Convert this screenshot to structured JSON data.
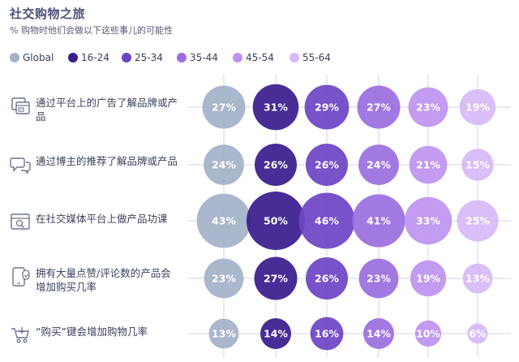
{
  "title": "社交购物之旅",
  "subtitle": "% 购物时他们会做以下这些事儿的可能性",
  "chart_data": {
    "type": "bubble-matrix",
    "title": "社交购物之旅",
    "subtitle": "% 购物时他们会做以下这些事儿的可能性",
    "legend_position": "top-left",
    "series": [
      {
        "name": "Global",
        "color": "#a4b1c9",
        "values": [
          27,
          24,
          43,
          23,
          13
        ]
      },
      {
        "name": "16-24",
        "color": "#3a1d8e",
        "values": [
          31,
          26,
          50,
          27,
          14
        ]
      },
      {
        "name": "25-34",
        "color": "#6d45c4",
        "values": [
          29,
          26,
          46,
          26,
          16
        ]
      },
      {
        "name": "35-44",
        "color": "#9b6fdf",
        "values": [
          27,
          24,
          41,
          23,
          14
        ]
      },
      {
        "name": "45-54",
        "color": "#be93ef",
        "values": [
          23,
          21,
          33,
          19,
          10
        ]
      },
      {
        "name": "55-64",
        "color": "#d7b9f6",
        "values": [
          19,
          15,
          25,
          13,
          6
        ]
      }
    ],
    "categories": [
      {
        "label": "通过平台上的广告了解品牌或产品",
        "icon": "ad-window-icon"
      },
      {
        "label": "通过博主的推荐了解品牌或产品",
        "icon": "chat-bubbles-icon"
      },
      {
        "label": "在社交媒体平台上做产品功课",
        "icon": "browser-search-icon"
      },
      {
        "label": "拥有大量点赞/评论数的产品会增加购买几率",
        "icon": "phone-like-icon"
      },
      {
        "label": "“购买”键会增加购物几率",
        "icon": "shopping-cart-icon"
      }
    ],
    "value_suffix": "%",
    "grid": true
  }
}
